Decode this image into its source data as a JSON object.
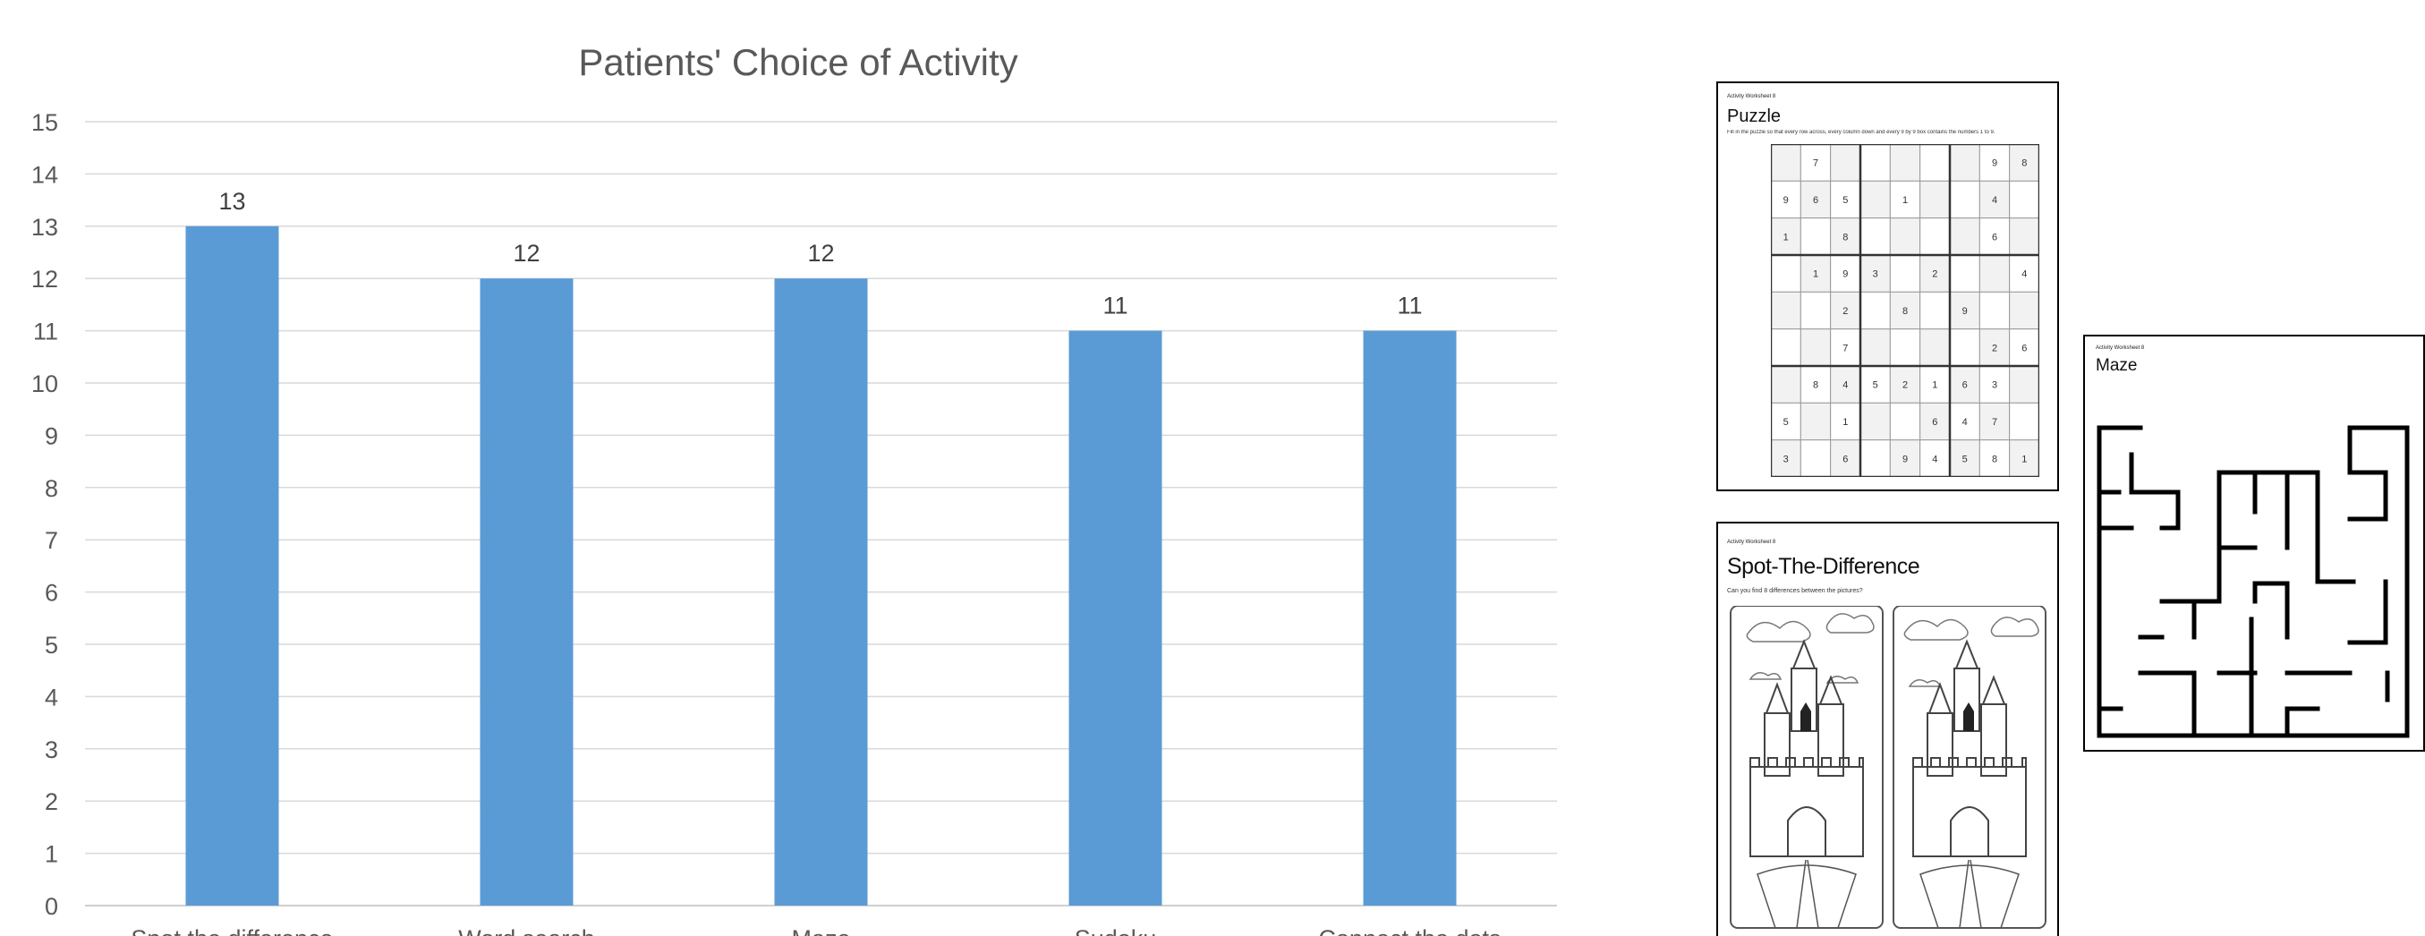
{
  "chart_data": {
    "type": "bar",
    "title": "Patients' Choice of Activity",
    "categories": [
      "Spot the difference",
      "Word search",
      "Maze",
      "Sudoku",
      "Connect the dots"
    ],
    "values": [
      13,
      12,
      12,
      11,
      11
    ],
    "ylim": [
      0,
      15
    ],
    "yticks": [
      0,
      1,
      2,
      3,
      4,
      5,
      6,
      7,
      8,
      9,
      10,
      11,
      12,
      13,
      14,
      15
    ],
    "grid": true,
    "bar_color": "#5b9bd5",
    "data_labels": true
  },
  "worksheets": {
    "puzzle": {
      "tag": "Activity Worksheet 8",
      "title": "Puzzle",
      "instructions": "Fill in the puzzle so that every row across, every column down and every 9 by 9 box contains the numbers 1 to 9.",
      "grid": [
        [
          "",
          "7",
          "",
          "",
          "",
          "",
          "",
          "9",
          "8"
        ],
        [
          "9",
          "6",
          "5",
          "",
          "1",
          "",
          "",
          "4",
          ""
        ],
        [
          "1",
          "",
          "8",
          "",
          "",
          "",
          "",
          "6",
          ""
        ],
        [
          "",
          "1",
          "9",
          "3",
          "",
          "2",
          "",
          "",
          "4"
        ],
        [
          "",
          "",
          "2",
          "",
          "8",
          "",
          "9",
          "",
          ""
        ],
        [
          "",
          "",
          "7",
          "",
          "",
          "",
          "",
          "2",
          "6"
        ],
        [
          "",
          "8",
          "4",
          "5",
          "2",
          "1",
          "6",
          "3",
          ""
        ],
        [
          "5",
          "",
          "1",
          "",
          "",
          "6",
          "4",
          "7",
          ""
        ],
        [
          "3",
          "",
          "6",
          "",
          "9",
          "4",
          "5",
          "8",
          "1"
        ]
      ]
    },
    "spot": {
      "tag": "Activity Worksheet 8",
      "title": "Spot-The-Difference",
      "instructions": "Can you find 8 differences between the pictures?"
    },
    "maze": {
      "tag": "Activity Worksheet 8",
      "title": "Maze"
    }
  }
}
